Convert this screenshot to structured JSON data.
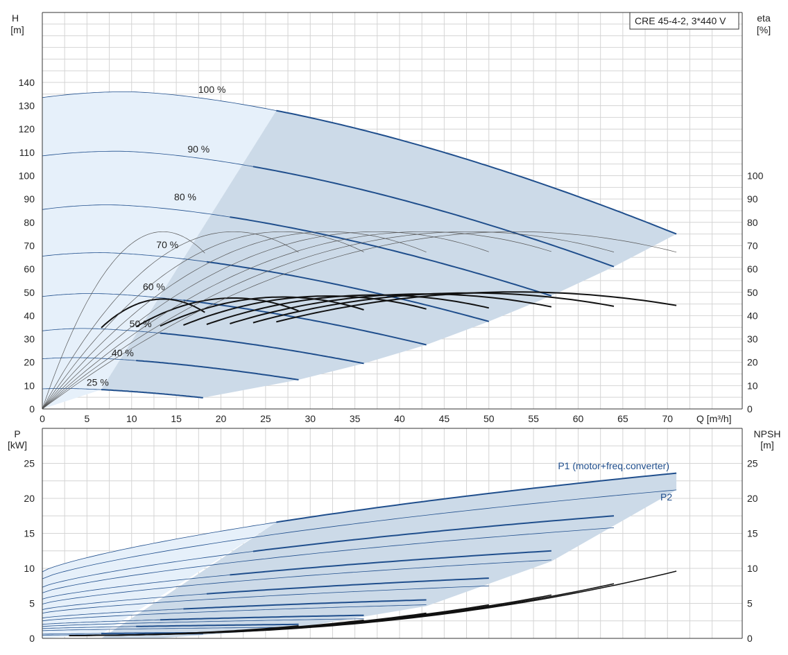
{
  "model_label": "CRE 45-4-2, 3*440 V",
  "colors": {
    "curve": "#1f4e8c",
    "eff": "#111111",
    "area_light": "#e6f0fa",
    "area_dark": "#ccdae8",
    "grid": "#d4d4d4",
    "axis": "#333333"
  },
  "chart_data": [
    {
      "type": "line",
      "name": "head_efficiency",
      "ylabel": [
        "H",
        "[m]"
      ],
      "y2label": [
        "eta",
        "[%]"
      ],
      "xlabel": "Q [m³/h]",
      "xlim": [
        0,
        78
      ],
      "ylim": [
        0,
        170
      ],
      "y2lim": [
        0,
        170
      ],
      "xticks": [
        0,
        5,
        10,
        15,
        20,
        25,
        30,
        35,
        40,
        45,
        50,
        55,
        60,
        65,
        70
      ],
      "yticks": [
        0,
        10,
        20,
        30,
        40,
        50,
        60,
        70,
        80,
        90,
        100,
        110,
        120,
        130,
        140
      ],
      "y2ticks": [
        0,
        10,
        20,
        30,
        40,
        50,
        60,
        70,
        80,
        90,
        100
      ],
      "grid": true,
      "head_curves": [
        {
          "label": "100 %",
          "label_x": 19,
          "label_y": 137,
          "h0": 133.5,
          "hmax": 136.0,
          "qpeak": 9.5,
          "qend": 71,
          "hend": 75,
          "qbold": 26.2
        },
        {
          "label": "90 %",
          "label_x": 17.5,
          "label_y": 111.5,
          "h0": 108.5,
          "hmax": 110.5,
          "qpeak": 8.5,
          "qend": 64,
          "hend": 61,
          "qbold": 23.6
        },
        {
          "label": "80 %",
          "label_x": 16,
          "label_y": 91,
          "h0": 85.5,
          "hmax": 87.5,
          "qpeak": 7.5,
          "qend": 57,
          "hend": 48.5,
          "qbold": 21
        },
        {
          "label": "70 %",
          "label_x": 14,
          "label_y": 70.5,
          "h0": 65.5,
          "hmax": 67.0,
          "qpeak": 6.6,
          "qend": 50,
          "hend": 37.5,
          "qbold": 18.4
        },
        {
          "label": "60 %",
          "label_x": 12.5,
          "label_y": 52.5,
          "h0": 48.2,
          "hmax": 49.5,
          "qpeak": 5.7,
          "qend": 43,
          "hend": 27.5,
          "qbold": 15.8
        },
        {
          "label": "50 %",
          "label_x": 11,
          "label_y": 36.5,
          "h0": 33.5,
          "hmax": 34.5,
          "qpeak": 4.7,
          "qend": 36,
          "hend": 19.5,
          "qbold": 13.2
        },
        {
          "label": "40 %",
          "label_x": 9,
          "label_y": 24,
          "h0": 21.5,
          "hmax": 22.0,
          "qpeak": 3.8,
          "qend": 28.7,
          "hend": 12.5,
          "qbold": 10.5
        },
        {
          "label": "25 %",
          "label_x": 6.2,
          "label_y": 11.5,
          "h0": 8.6,
          "hmax": 8.8,
          "qpeak": 2.4,
          "qend": 18,
          "hend": 4.8,
          "qbold": 6.6
        }
      ],
      "efficiency_curves": [
        {
          "qmax_end": 18.2,
          "q_peak": 13.5,
          "qbold_start": 6.6,
          "peak": 76
        },
        {
          "qmax_end": 28.7,
          "q_peak": 21.4,
          "qbold_start": 10.5,
          "peak": 76
        },
        {
          "qmax_end": 36.0,
          "q_peak": 26.9,
          "qbold_start": 13.2,
          "peak": 76
        },
        {
          "qmax_end": 43.0,
          "q_peak": 32.1,
          "qbold_start": 15.8,
          "peak": 76
        },
        {
          "qmax_end": 50.0,
          "q_peak": 37.4,
          "qbold_start": 18.4,
          "peak": 76
        },
        {
          "qmax_end": 57.0,
          "q_peak": 42.7,
          "qbold_start": 21.0,
          "peak": 76
        },
        {
          "qmax_end": 64.0,
          "q_peak": 47.8,
          "qbold_start": 23.6,
          "peak": 76
        },
        {
          "qmax_end": 71.0,
          "q_peak": 53.0,
          "qbold_start": 26.2,
          "peak": 76
        }
      ]
    },
    {
      "type": "line",
      "name": "power_npsh",
      "ylabel": [
        "P",
        "[kW]"
      ],
      "y2label": [
        "NPSH",
        "[m]"
      ],
      "xlim": [
        0,
        78
      ],
      "ylim": [
        0,
        29.5
      ],
      "y2lim": [
        0,
        29.5
      ],
      "yticks": [
        0,
        5,
        10,
        15,
        20,
        25
      ],
      "y2ticks": [
        0,
        5,
        10,
        15,
        20,
        25
      ],
      "grid": true,
      "series_labels": {
        "p1": "P1 (motor+freq.converter)",
        "p2": "P2"
      },
      "p1_curves": [
        {
          "qend": 71,
          "y0": 9.5,
          "yend": 23.6,
          "qbold": 26.2
        },
        {
          "qend": 64,
          "y0": 7.3,
          "yend": 17.5,
          "qbold": 23.6
        },
        {
          "qend": 57,
          "y0": 5.6,
          "yend": 12.5,
          "qbold": 21
        },
        {
          "qend": 50,
          "y0": 4.1,
          "yend": 8.6,
          "qbold": 18.4
        },
        {
          "qend": 43,
          "y0": 2.9,
          "yend": 5.5,
          "qbold": 15.8
        },
        {
          "qend": 36,
          "y0": 2.0,
          "yend": 3.3,
          "qbold": 13.2
        },
        {
          "qend": 28.7,
          "y0": 1.4,
          "yend": 2.0,
          "qbold": 10.5
        },
        {
          "qend": 18,
          "y0": 0.6,
          "yend": 0.8,
          "qbold": 6.6
        }
      ],
      "p2_curves": [
        {
          "qend": 71,
          "y0": 8.5,
          "yend": 21.2
        },
        {
          "qend": 64,
          "y0": 6.5,
          "yend": 15.8
        },
        {
          "qend": 57,
          "y0": 4.9,
          "yend": 11.2
        },
        {
          "qend": 50,
          "y0": 3.6,
          "yend": 7.5
        },
        {
          "qend": 43,
          "y0": 2.5,
          "yend": 4.8
        },
        {
          "qend": 36,
          "y0": 1.7,
          "yend": 2.8
        },
        {
          "qend": 28.7,
          "y0": 1.1,
          "yend": 1.6
        },
        {
          "qend": 18,
          "y0": 0.45,
          "yend": 0.6
        }
      ],
      "npsh_curves": [
        {
          "qend": 71,
          "yend": 9.6
        },
        {
          "qend": 64,
          "yend": 7.8
        },
        {
          "qend": 57,
          "yend": 6.2
        },
        {
          "qend": 50,
          "yend": 4.8
        },
        {
          "qend": 43,
          "yend": 3.6
        },
        {
          "qend": 36,
          "yend": 2.6
        },
        {
          "qend": 28.7,
          "yend": 1.8
        }
      ]
    }
  ]
}
